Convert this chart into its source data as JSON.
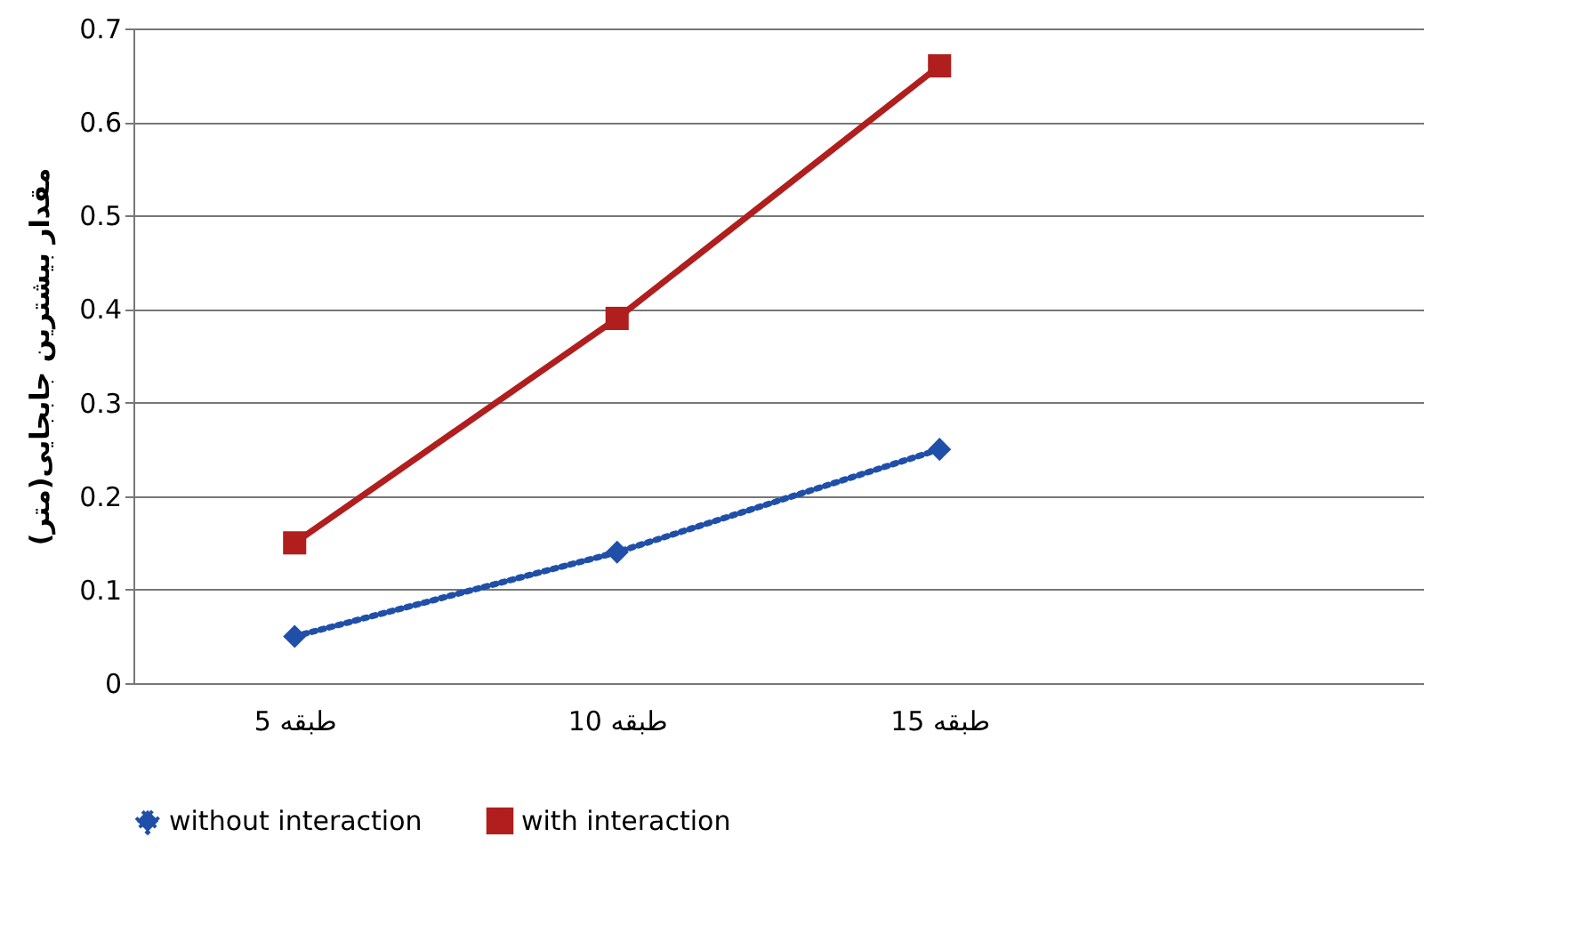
{
  "chart_data": {
    "type": "line",
    "ylabel": "مقدار بیشترین جابجایی(متر)",
    "categories": [
      "5 طبقه",
      "10 طبقه",
      "15 طبقه",
      null
    ],
    "series": [
      {
        "name": "without interaction",
        "color": "#1f4fa8",
        "values": [
          0.05,
          0.14,
          0.25,
          null
        ],
        "marker": "diamond",
        "line_style": "dotted"
      },
      {
        "name": "with interaction",
        "color": "#b01e1e",
        "values": [
          0.15,
          0.39,
          0.66,
          null
        ],
        "marker": "square",
        "line_style": "solid"
      }
    ],
    "ylim": [
      0,
      0.7
    ],
    "yticks": [
      0,
      0.1,
      0.2,
      0.3,
      0.4,
      0.5,
      0.6,
      0.7
    ],
    "grid": "y",
    "legend": "bottom"
  }
}
